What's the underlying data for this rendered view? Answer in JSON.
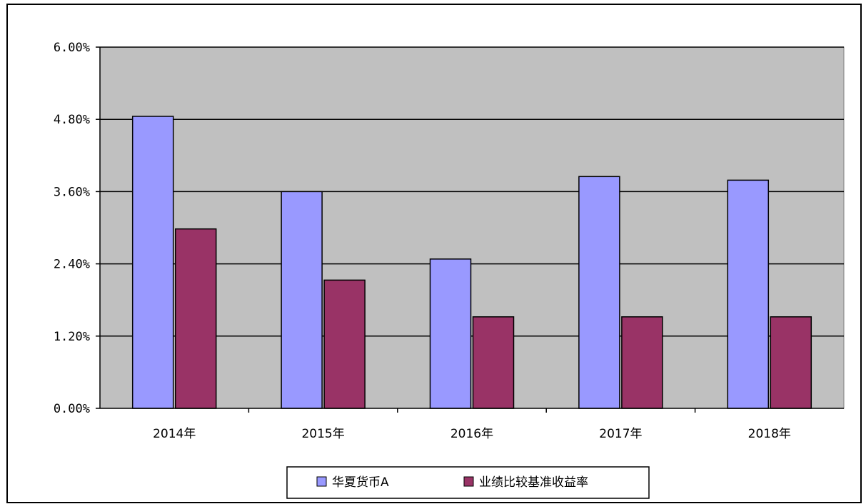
{
  "chart_data": {
    "type": "bar",
    "categories": [
      "2014年",
      "2015年",
      "2016年",
      "2017年",
      "2018年"
    ],
    "series": [
      {
        "name": "华夏货币A",
        "values": [
          4.85,
          3.6,
          2.48,
          3.85,
          3.79
        ],
        "color": "#9999ff"
      },
      {
        "name": "业绩比较基准收益率",
        "values": [
          2.98,
          2.13,
          1.52,
          1.52,
          1.52
        ],
        "color": "#993366"
      }
    ],
    "y_ticks": [
      "0.00%",
      "1.20%",
      "2.40%",
      "3.60%",
      "4.80%",
      "6.00%"
    ],
    "ylim": [
      0,
      6
    ],
    "grid": true,
    "legend": "bottom",
    "plot_background": "#c0c0c0"
  }
}
